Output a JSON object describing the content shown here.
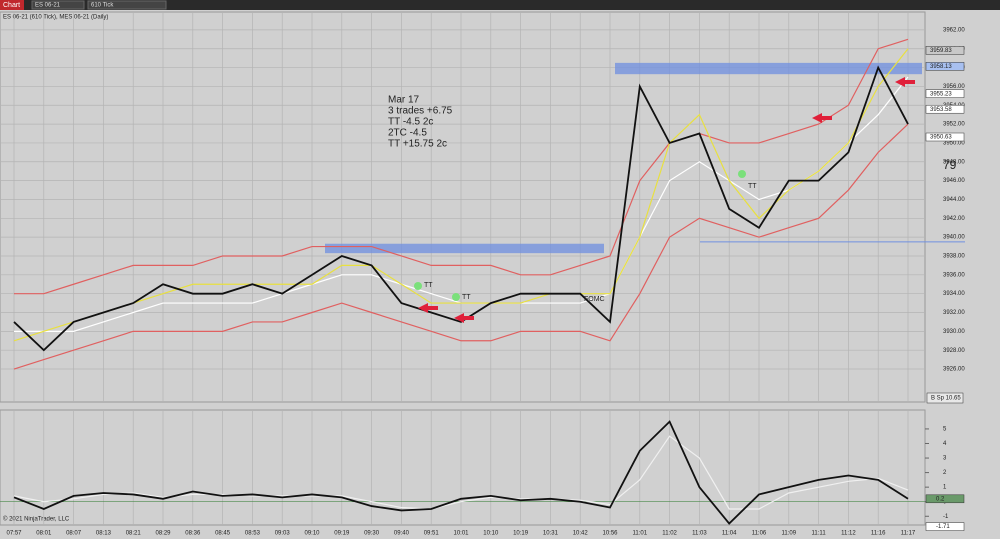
{
  "toolbar": {
    "tab": "Chart",
    "instrument": "ES 06-21",
    "interval": "610 Tick"
  },
  "chart_data": [
    {
      "type": "line",
      "title": "ES 06-21 (610 Tick), MES 06-21 (Daily)",
      "categories": [
        "07:57",
        "08:01",
        "08:07",
        "08:13",
        "08:21",
        "08:29",
        "08:36",
        "08:45",
        "08:53",
        "09:03",
        "09:10",
        "09:19",
        "09:30",
        "09:40",
        "09:51",
        "10:01",
        "10:10",
        "10:19",
        "10:31",
        "10:42",
        "10:56",
        "11:01",
        "11:02",
        "11:03",
        "11:04",
        "11:06",
        "11:09",
        "11:11",
        "11:12",
        "11:16",
        "11:17"
      ],
      "series": [
        {
          "color": "#e06060",
          "values": [
            3934,
            3934,
            3935,
            3936,
            3937,
            3937,
            3937,
            3938,
            3938,
            3938,
            3939,
            3939,
            3939,
            3938,
            3937,
            3937,
            3937,
            3936,
            3936,
            3937,
            3938,
            3946,
            3950,
            3951,
            3950,
            3950,
            3951,
            3952,
            3954,
            3960,
            3961
          ]
        },
        {
          "color": "#e06060",
          "values": [
            3926,
            3927,
            3928,
            3929,
            3930,
            3930,
            3930,
            3930,
            3931,
            3931,
            3932,
            3933,
            3932,
            3931,
            3930,
            3929,
            3929,
            3930,
            3930,
            3930,
            3929,
            3934,
            3940,
            3942,
            3941,
            3940,
            3941,
            3942,
            3945,
            3949,
            3952
          ]
        },
        {
          "color": "#ffffff",
          "values": [
            3930,
            3930,
            3930,
            3931,
            3932,
            3933,
            3933,
            3933,
            3933,
            3934,
            3935,
            3936,
            3936,
            3935,
            3934,
            3933,
            3933,
            3933,
            3933,
            3933,
            3934,
            3940,
            3946,
            3948,
            3946,
            3944,
            3945,
            3947,
            3950,
            3953,
            3957
          ]
        },
        {
          "color": "#e8e040",
          "values": [
            3929,
            3930,
            3931,
            3932,
            3933,
            3934,
            3935,
            3935,
            3935,
            3935,
            3935,
            3937,
            3937,
            3935,
            3933,
            3933,
            3933,
            3933,
            3934,
            3934,
            3934,
            3940,
            3950,
            3953,
            3946,
            3942,
            3945,
            3947,
            3950,
            3956,
            3960
          ]
        },
        {
          "color": "#111111",
          "values": [
            3931,
            3928,
            3931,
            3932,
            3933,
            3935,
            3934,
            3934,
            3935,
            3934,
            3936,
            3938,
            3937,
            3933,
            3932,
            3931,
            3933,
            3934,
            3934,
            3934,
            3931,
            3956,
            3950,
            3951,
            3943,
            3941,
            3946,
            3946,
            3949,
            3958,
            3952
          ]
        }
      ],
      "ylim": [
        3922.5,
        3963.9
      ],
      "yticks": [
        {
          "value": 3926,
          "label": "3926.00"
        },
        {
          "value": 3928,
          "label": "3928.00"
        },
        {
          "value": 3930,
          "label": "3930.00"
        },
        {
          "value": 3932,
          "label": "3932.00"
        },
        {
          "value": 3934,
          "label": "3934.00"
        },
        {
          "value": 3936,
          "label": "3936.00"
        },
        {
          "value": 3938,
          "label": "3938.00"
        },
        {
          "value": 3940,
          "label": "3940.00"
        },
        {
          "value": 3942,
          "label": "3942.00"
        },
        {
          "value": 3944,
          "label": "3944.00"
        },
        {
          "value": 3946,
          "label": "3946.00"
        },
        {
          "value": 3948,
          "label": "3948.00"
        },
        {
          "value": 3950,
          "label": "3950.00"
        },
        {
          "value": 3952,
          "label": "3952.00"
        },
        {
          "value": 3954,
          "label": "3954.00"
        },
        {
          "value": 3956,
          "label": "3956.00"
        },
        {
          "value": 3958,
          "label": "3958.00"
        },
        {
          "value": 3960,
          "label": "3960.00"
        },
        {
          "value": 3962,
          "label": "3962.00"
        }
      ],
      "grid": true,
      "price_flags": [
        3959.83,
        3958.13,
        3955.23,
        3953.58,
        3950.63
      ],
      "zones": [
        {
          "from": 3957.3,
          "to": 3958.5
        },
        {
          "from": 3938.3,
          "to": 3939.3
        }
      ],
      "level": 3939.5,
      "notes": [
        "Mar 17",
        "3 trades  +6.75",
        "TT  -4.5 2c",
        "2TC  -4.5",
        "TT  +15.75 2c"
      ],
      "annotations": [
        "FOMC",
        "TT",
        "TT",
        "TT",
        "79",
        "B Sp 10.65"
      ],
      "copyright": "© 2021 NinjaTrader, LLC"
    },
    {
      "type": "line",
      "series": [
        {
          "color": "#f0f0f0",
          "values": [
            0.4,
            0.0,
            0.2,
            0.5,
            0.6,
            0.3,
            0.5,
            0.5,
            0.4,
            0.4,
            0.4,
            0.4,
            0.0,
            -0.4,
            -0.5,
            0.0,
            0.3,
            0.2,
            0.2,
            0.1,
            -0.2,
            1.5,
            4.5,
            3.0,
            -0.5,
            -0.5,
            0.6,
            1.0,
            1.4,
            1.6,
            0.8
          ]
        },
        {
          "color": "#111111",
          "values": [
            0.3,
            -0.5,
            0.4,
            0.6,
            0.5,
            0.2,
            0.7,
            0.4,
            0.5,
            0.3,
            0.5,
            0.3,
            -0.3,
            -0.6,
            -0.5,
            0.2,
            0.4,
            0.1,
            0.2,
            0.0,
            -0.4,
            3.5,
            5.5,
            1.0,
            -1.5,
            0.5,
            1.0,
            1.5,
            1.8,
            1.5,
            0.2
          ]
        }
      ],
      "ylim": [
        -1.6,
        6.3
      ],
      "yticks": [
        -1,
        0,
        1,
        2,
        3,
        4,
        5
      ],
      "flags": [
        0.2,
        -1.71
      ]
    }
  ]
}
